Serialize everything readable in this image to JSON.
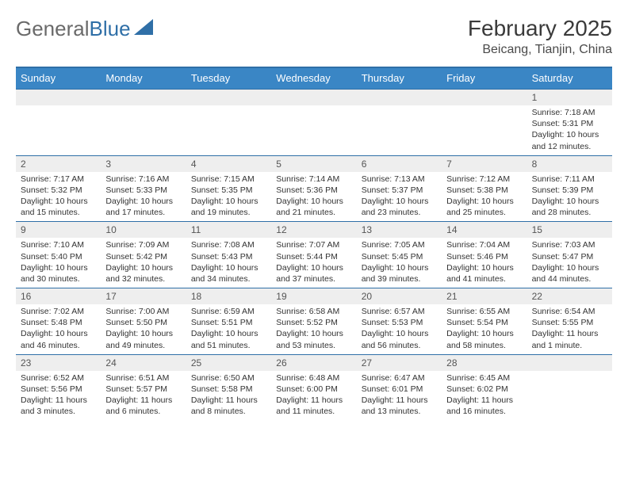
{
  "brand": {
    "name_a": "General",
    "name_b": "Blue"
  },
  "title": "February 2025",
  "location": "Beicang, Tianjin, China",
  "colors": {
    "header_blue": "#3a86c5",
    "rule_blue": "#2f6fa7",
    "band_grey": "#eeeeee",
    "text_grey": "#333333",
    "logo_grey": "#6a6a6a"
  },
  "weekdays": [
    "Sunday",
    "Monday",
    "Tuesday",
    "Wednesday",
    "Thursday",
    "Friday",
    "Saturday"
  ],
  "grid": {
    "cols": 7,
    "first_weekday_index_of_day1": 6
  },
  "days": [
    {
      "n": 1,
      "sunrise": "7:18 AM",
      "sunset": "5:31 PM",
      "daylight": "10 hours and 12 minutes."
    },
    {
      "n": 2,
      "sunrise": "7:17 AM",
      "sunset": "5:32 PM",
      "daylight": "10 hours and 15 minutes."
    },
    {
      "n": 3,
      "sunrise": "7:16 AM",
      "sunset": "5:33 PM",
      "daylight": "10 hours and 17 minutes."
    },
    {
      "n": 4,
      "sunrise": "7:15 AM",
      "sunset": "5:35 PM",
      "daylight": "10 hours and 19 minutes."
    },
    {
      "n": 5,
      "sunrise": "7:14 AM",
      "sunset": "5:36 PM",
      "daylight": "10 hours and 21 minutes."
    },
    {
      "n": 6,
      "sunrise": "7:13 AM",
      "sunset": "5:37 PM",
      "daylight": "10 hours and 23 minutes."
    },
    {
      "n": 7,
      "sunrise": "7:12 AM",
      "sunset": "5:38 PM",
      "daylight": "10 hours and 25 minutes."
    },
    {
      "n": 8,
      "sunrise": "7:11 AM",
      "sunset": "5:39 PM",
      "daylight": "10 hours and 28 minutes."
    },
    {
      "n": 9,
      "sunrise": "7:10 AM",
      "sunset": "5:40 PM",
      "daylight": "10 hours and 30 minutes."
    },
    {
      "n": 10,
      "sunrise": "7:09 AM",
      "sunset": "5:42 PM",
      "daylight": "10 hours and 32 minutes."
    },
    {
      "n": 11,
      "sunrise": "7:08 AM",
      "sunset": "5:43 PM",
      "daylight": "10 hours and 34 minutes."
    },
    {
      "n": 12,
      "sunrise": "7:07 AM",
      "sunset": "5:44 PM",
      "daylight": "10 hours and 37 minutes."
    },
    {
      "n": 13,
      "sunrise": "7:05 AM",
      "sunset": "5:45 PM",
      "daylight": "10 hours and 39 minutes."
    },
    {
      "n": 14,
      "sunrise": "7:04 AM",
      "sunset": "5:46 PM",
      "daylight": "10 hours and 41 minutes."
    },
    {
      "n": 15,
      "sunrise": "7:03 AM",
      "sunset": "5:47 PM",
      "daylight": "10 hours and 44 minutes."
    },
    {
      "n": 16,
      "sunrise": "7:02 AM",
      "sunset": "5:48 PM",
      "daylight": "10 hours and 46 minutes."
    },
    {
      "n": 17,
      "sunrise": "7:00 AM",
      "sunset": "5:50 PM",
      "daylight": "10 hours and 49 minutes."
    },
    {
      "n": 18,
      "sunrise": "6:59 AM",
      "sunset": "5:51 PM",
      "daylight": "10 hours and 51 minutes."
    },
    {
      "n": 19,
      "sunrise": "6:58 AM",
      "sunset": "5:52 PM",
      "daylight": "10 hours and 53 minutes."
    },
    {
      "n": 20,
      "sunrise": "6:57 AM",
      "sunset": "5:53 PM",
      "daylight": "10 hours and 56 minutes."
    },
    {
      "n": 21,
      "sunrise": "6:55 AM",
      "sunset": "5:54 PM",
      "daylight": "10 hours and 58 minutes."
    },
    {
      "n": 22,
      "sunrise": "6:54 AM",
      "sunset": "5:55 PM",
      "daylight": "11 hours and 1 minute."
    },
    {
      "n": 23,
      "sunrise": "6:52 AM",
      "sunset": "5:56 PM",
      "daylight": "11 hours and 3 minutes."
    },
    {
      "n": 24,
      "sunrise": "6:51 AM",
      "sunset": "5:57 PM",
      "daylight": "11 hours and 6 minutes."
    },
    {
      "n": 25,
      "sunrise": "6:50 AM",
      "sunset": "5:58 PM",
      "daylight": "11 hours and 8 minutes."
    },
    {
      "n": 26,
      "sunrise": "6:48 AM",
      "sunset": "6:00 PM",
      "daylight": "11 hours and 11 minutes."
    },
    {
      "n": 27,
      "sunrise": "6:47 AM",
      "sunset": "6:01 PM",
      "daylight": "11 hours and 13 minutes."
    },
    {
      "n": 28,
      "sunrise": "6:45 AM",
      "sunset": "6:02 PM",
      "daylight": "11 hours and 16 minutes."
    }
  ],
  "labels": {
    "sunrise": "Sunrise:",
    "sunset": "Sunset:",
    "daylight": "Daylight:"
  }
}
